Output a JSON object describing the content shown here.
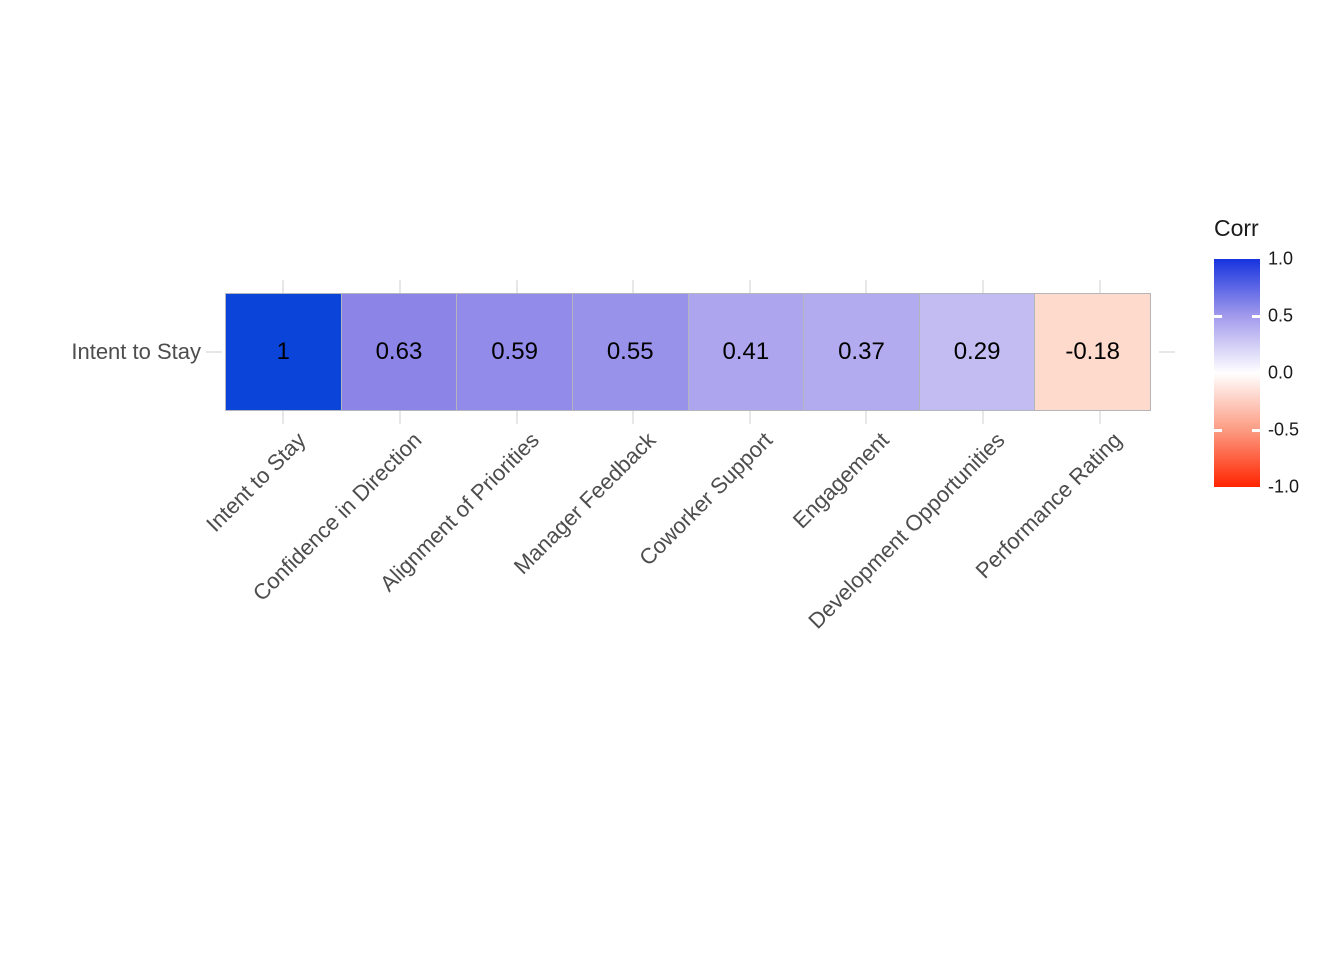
{
  "chart_data": {
    "type": "heatmap",
    "rows": [
      "Intent to Stay"
    ],
    "columns": [
      "Intent to Stay",
      "Confidence in Direction",
      "Alignment of Priorities",
      "Manager Feedback",
      "Coworker Support",
      "Engagement",
      "Development Opportunities",
      "Performance Rating"
    ],
    "values": [
      [
        1,
        0.63,
        0.59,
        0.55,
        0.41,
        0.37,
        0.29,
        -0.18
      ]
    ],
    "value_labels": [
      [
        "1",
        "0.63",
        "0.59",
        "0.55",
        "0.41",
        "0.37",
        "0.29",
        "-0.18"
      ]
    ],
    "cell_colors": [
      [
        "#0b44d8",
        "#8c85e7",
        "#928be9",
        "#9992ea",
        "#ada6ee",
        "#b2abef",
        "#c2bcf2",
        "#fddacc"
      ]
    ],
    "grid": true,
    "legend": {
      "title": "Corr",
      "position": "right",
      "range": [
        -1,
        1
      ],
      "tick_labels": [
        "1.0",
        "0.5",
        "0.0",
        "-0.5",
        "-1.0"
      ],
      "tick_values": [
        1.0,
        0.5,
        0.0,
        -0.5,
        -1.0
      ],
      "inner_tickmark_values": [
        0.5,
        -0.5
      ],
      "gradient_stops": [
        {
          "pos": 0.0,
          "color": "#1733df"
        },
        {
          "pos": 0.25,
          "color": "#a29aec"
        },
        {
          "pos": 0.5,
          "color": "#ffffff"
        },
        {
          "pos": 0.75,
          "color": "#fc9b82"
        },
        {
          "pos": 1.0,
          "color": "#ff2400"
        }
      ]
    },
    "colors": {
      "high": "#0b44d8",
      "mid": "#ffffff",
      "low": "#ff2400",
      "gridline": "#e7e7e7",
      "cell_border": "#b5b5bd",
      "axis_text": "#4d4d4d",
      "value_text": "#000000"
    }
  }
}
